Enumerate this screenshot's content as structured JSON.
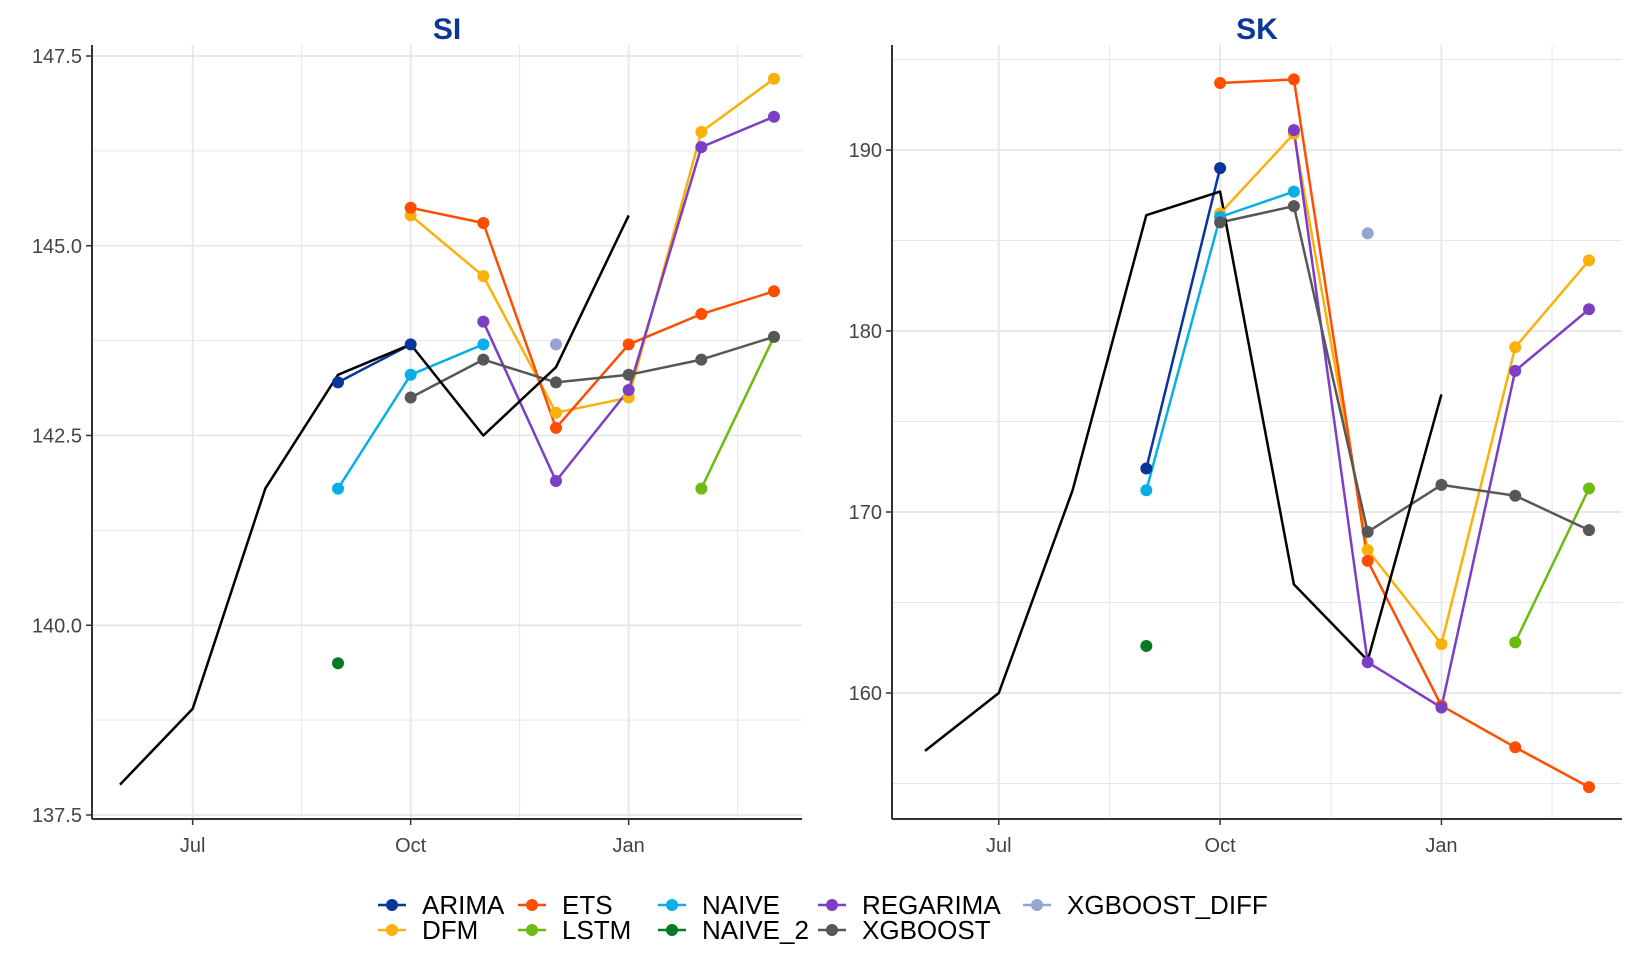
{
  "legend": {
    "entries": [
      {
        "key": "ARIMA",
        "label": "ARIMA",
        "color": "#08369a"
      },
      {
        "key": "DFM",
        "label": "DFM",
        "color": "#fbb10b"
      },
      {
        "key": "ETS",
        "label": "ETS",
        "color": "#ff4e00"
      },
      {
        "key": "LSTM",
        "label": "LSTM",
        "color": "#6cbb10"
      },
      {
        "key": "NAIVE",
        "label": "NAIVE",
        "color": "#09aee6"
      },
      {
        "key": "NAIVE_2",
        "label": "NAIVE_2",
        "color": "#047a22"
      },
      {
        "key": "REGARIMA",
        "label": "REGARIMA",
        "color": "#7b3ec5"
      },
      {
        "key": "XGBOOST",
        "label": "XGBOOST",
        "color": "#575757"
      },
      {
        "key": "XGBOOST_DIFF",
        "label": "XGBOOST_DIFF",
        "color": "#97a3d1"
      }
    ]
  },
  "colors": {
    "title": "#0b3796",
    "actual_line": "#000000",
    "grid": "#e6e6e6",
    "axis": "#333333"
  },
  "chart_data": [
    {
      "type": "line",
      "title": "SI",
      "xlabel": "",
      "ylabel": "",
      "x_axis": {
        "type": "month",
        "tick_labels": [
          "Jul",
          "Oct",
          "Jan"
        ],
        "tick_values": [
          "2023-07",
          "2023-10",
          "2024-01"
        ],
        "range": [
          "2023-06",
          "2024-03"
        ]
      },
      "ylim": [
        137.5,
        147.5
      ],
      "y_ticks": [
        137.5,
        140.0,
        142.5,
        145.0,
        147.5
      ],
      "y_tick_labels": [
        "137.5",
        "140.0",
        "142.5",
        "145.0",
        "147.5"
      ],
      "grid": true,
      "legend_position": "bottom",
      "actual": {
        "x": [
          "2023-06",
          "2023-07",
          "2023-08",
          "2023-09",
          "2023-10",
          "2023-11",
          "2023-12",
          "2024-01"
        ],
        "y": [
          137.9,
          138.9,
          141.8,
          143.3,
          143.7,
          142.5,
          143.4,
          145.4
        ]
      },
      "series": [
        {
          "name": "ARIMA",
          "points": [
            [
              "2023-09",
              143.2
            ],
            [
              "2023-10",
              143.7
            ]
          ]
        },
        {
          "name": "DFM",
          "points": [
            [
              "2023-10",
              145.4
            ],
            [
              "2023-11",
              144.6
            ],
            [
              "2023-12",
              142.8
            ],
            [
              "2024-01",
              143.0
            ],
            [
              "2024-02",
              146.5
            ],
            [
              "2024-03",
              147.2
            ]
          ]
        },
        {
          "name": "ETS",
          "points": [
            [
              "2023-10",
              145.5
            ],
            [
              "2023-11",
              145.3
            ],
            [
              "2023-12",
              142.6
            ],
            [
              "2024-01",
              143.7
            ],
            [
              "2024-02",
              144.1
            ],
            [
              "2024-03",
              144.4
            ]
          ]
        },
        {
          "name": "LSTM",
          "points": [
            [
              "2024-02",
              141.8
            ],
            [
              "2024-03",
              143.8
            ]
          ]
        },
        {
          "name": "NAIVE",
          "points": [
            [
              "2023-09",
              141.8
            ],
            [
              "2023-10",
              143.3
            ],
            [
              "2023-11",
              143.7
            ]
          ]
        },
        {
          "name": "NAIVE_2",
          "points": [
            [
              "2023-09",
              139.5
            ]
          ]
        },
        {
          "name": "REGARIMA",
          "points": [
            [
              "2023-11",
              144.0
            ],
            [
              "2023-12",
              141.9
            ],
            [
              "2024-01",
              143.1
            ],
            [
              "2024-02",
              146.3
            ],
            [
              "2024-03",
              146.7
            ]
          ]
        },
        {
          "name": "XGBOOST",
          "points": [
            [
              "2023-10",
              143.0
            ],
            [
              "2023-11",
              143.5
            ],
            [
              "2023-12",
              143.2
            ],
            [
              "2024-01",
              143.3
            ],
            [
              "2024-02",
              143.5
            ],
            [
              "2024-03",
              143.8
            ]
          ]
        },
        {
          "name": "XGBOOST_DIFF",
          "points": [
            [
              "2023-12",
              143.7
            ]
          ]
        }
      ]
    },
    {
      "type": "line",
      "title": "SK",
      "xlabel": "",
      "ylabel": "",
      "x_axis": {
        "type": "month",
        "tick_labels": [
          "Jul",
          "Oct",
          "Jan"
        ],
        "tick_values": [
          "2023-07",
          "2023-10",
          "2024-01"
        ],
        "range": [
          "2023-06",
          "2024-03"
        ]
      },
      "ylim": [
        155,
        195
      ],
      "y_ticks": [
        160,
        170,
        180,
        190
      ],
      "y_tick_labels": [
        "160",
        "170",
        "180",
        "190"
      ],
      "grid": true,
      "legend_position": "bottom",
      "actual": {
        "x": [
          "2023-06",
          "2023-07",
          "2023-08",
          "2023-09",
          "2023-10",
          "2023-11",
          "2023-12",
          "2024-01"
        ],
        "y": [
          156.8,
          160.0,
          171.2,
          186.4,
          187.7,
          166.0,
          161.8,
          176.5
        ]
      },
      "series": [
        {
          "name": "ARIMA",
          "points": [
            [
              "2023-09",
              172.4
            ],
            [
              "2023-10",
              189.0
            ]
          ]
        },
        {
          "name": "DFM",
          "points": [
            [
              "2023-10",
              186.5
            ],
            [
              "2023-11",
              190.9
            ],
            [
              "2023-12",
              167.9
            ],
            [
              "2024-01",
              162.7
            ],
            [
              "2024-02",
              179.1
            ],
            [
              "2024-03",
              183.9
            ]
          ]
        },
        {
          "name": "ETS",
          "points": [
            [
              "2023-10",
              193.7
            ],
            [
              "2023-11",
              193.9
            ],
            [
              "2023-12",
              167.3
            ],
            [
              "2024-01",
              159.3
            ],
            [
              "2024-02",
              157.0
            ],
            [
              "2024-03",
              154.8
            ]
          ]
        },
        {
          "name": "LSTM",
          "points": [
            [
              "2024-02",
              162.8
            ],
            [
              "2024-03",
              171.3
            ]
          ]
        },
        {
          "name": "NAIVE",
          "points": [
            [
              "2023-09",
              171.2
            ],
            [
              "2023-10",
              186.3
            ],
            [
              "2023-11",
              187.7
            ]
          ]
        },
        {
          "name": "NAIVE_2",
          "points": [
            [
              "2023-09",
              162.6
            ]
          ]
        },
        {
          "name": "REGARIMA",
          "points": [
            [
              "2023-11",
              191.1
            ],
            [
              "2023-12",
              161.7
            ],
            [
              "2024-01",
              159.2
            ],
            [
              "2024-02",
              177.8
            ],
            [
              "2024-03",
              181.2
            ]
          ]
        },
        {
          "name": "XGBOOST",
          "points": [
            [
              "2023-10",
              186.0
            ],
            [
              "2023-11",
              186.9
            ],
            [
              "2023-12",
              168.9
            ],
            [
              "2024-01",
              171.5
            ],
            [
              "2024-02",
              170.9
            ],
            [
              "2024-03",
              169.0
            ]
          ]
        },
        {
          "name": "XGBOOST_DIFF",
          "points": [
            [
              "2023-12",
              185.4
            ]
          ]
        }
      ]
    }
  ]
}
